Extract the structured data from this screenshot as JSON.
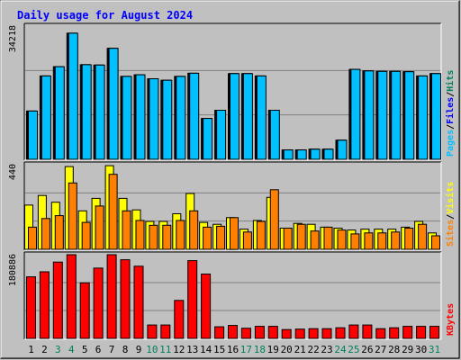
{
  "chart_data": {
    "type": "bar",
    "title": "Daily usage for August 2024",
    "days": [
      "1",
      "2",
      "3",
      "4",
      "5",
      "6",
      "7",
      "8",
      "9",
      "10",
      "11",
      "12",
      "13",
      "14",
      "15",
      "16",
      "17",
      "18",
      "19",
      "20",
      "21",
      "22",
      "23",
      "24",
      "25",
      "26",
      "27",
      "28",
      "29",
      "30",
      "31"
    ],
    "weekend_days": [
      "3",
      "4",
      "10",
      "11",
      "17",
      "18",
      "24",
      "25",
      "31"
    ],
    "panels": [
      {
        "name": "hits-files-pages",
        "scale_label": "34218",
        "ymax": 34218,
        "right_labels": [
          "Pages",
          "Files",
          "Hits"
        ],
        "series": [
          {
            "name": "Hits",
            "color": "#00805c",
            "values": [
              12400,
              21400,
              23800,
              32400,
              24300,
              24200,
              28500,
              21300,
              21700,
              20700,
              20300,
              21300,
              22100,
              10500,
              12600,
              22000,
              22000,
              21400,
              12600,
              2400,
              2400,
              2600,
              2600,
              4900,
              23100,
              22700,
              22600,
              22600,
              22500,
              21400,
              22000
            ]
          },
          {
            "name": "Files",
            "color": "#0000ff",
            "values": [
              12400,
              21400,
              23800,
              32400,
              24300,
              24200,
              28500,
              21300,
              21700,
              20700,
              20300,
              21300,
              22100,
              10500,
              12600,
              22000,
              22000,
              21400,
              12600,
              2400,
              2400,
              2600,
              2600,
              4900,
              23100,
              22700,
              22600,
              22600,
              22500,
              21400,
              22000
            ]
          },
          {
            "name": "Pages",
            "color": "#00c0ff",
            "values": [
              12400,
              21400,
              23800,
              32400,
              24300,
              24200,
              28500,
              21300,
              21700,
              20700,
              20300,
              21300,
              22100,
              10500,
              12600,
              22000,
              22000,
              21400,
              12600,
              2400,
              2400,
              2600,
              2600,
              4900,
              23100,
              22700,
              22600,
              22600,
              22500,
              21400,
              22000
            ]
          }
        ]
      },
      {
        "name": "visits-sites",
        "scale_label": "440",
        "ymax": 440,
        "right_labels": [
          "Sites",
          "Visits"
        ],
        "series": [
          {
            "name": "Visits",
            "color": "#ffff00",
            "values": [
              230,
              280,
              245,
              430,
              200,
              265,
              435,
              265,
              205,
              145,
              145,
              185,
              290,
              140,
              130,
              165,
              105,
              150,
              270,
              110,
              135,
              130,
              115,
              110,
              100,
              105,
              105,
              105,
              115,
              145,
              85
            ]
          },
          {
            "name": "Sites",
            "color": "#ff8000",
            "values": [
              115,
              160,
              175,
              345,
              140,
              225,
              390,
              200,
              150,
              125,
              125,
              150,
              200,
              115,
              120,
              165,
              90,
              145,
              310,
              110,
              130,
              95,
              115,
              100,
              80,
              85,
              85,
              90,
              110,
              130,
              70
            ]
          }
        ]
      },
      {
        "name": "kbytes",
        "scale_label": "180886",
        "ymax": 180886,
        "right_labels": [
          "KBytes"
        ],
        "series": [
          {
            "name": "KBytes",
            "color": "#ff0000",
            "values": [
              133000,
              144000,
              165000,
              180886,
              120000,
              152000,
              180886,
              170000,
              156000,
              29000,
              29000,
              82000,
              168000,
              139000,
              25000,
              28000,
              22000,
              26000,
              26000,
              19000,
              20000,
              21000,
              21000,
              23000,
              29000,
              29000,
              21000,
              23000,
              26000,
              26000,
              26000
            ]
          }
        ]
      }
    ],
    "colors": {
      "title": "#0000ff",
      "weekday": "#000000",
      "weekend": "#00805c"
    }
  }
}
